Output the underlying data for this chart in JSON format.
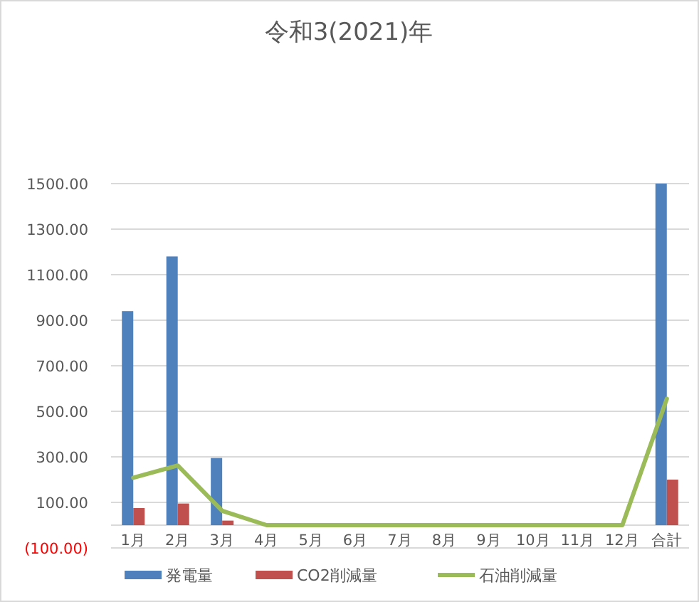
{
  "chart_data": {
    "type": "bar",
    "title": "令和3(2021)年",
    "categories": [
      "1月",
      "2月",
      "3月",
      "4月",
      "5月",
      "6月",
      "7月",
      "8月",
      "9月",
      "10月",
      "11月",
      "12月",
      "合計"
    ],
    "series": [
      {
        "name": "発電量",
        "color": "#4f81bd",
        "values": [
          940,
          1180,
          295,
          0,
          0,
          0,
          0,
          0,
          0,
          0,
          0,
          0,
          1500
        ]
      },
      {
        "name": "CO2削減量",
        "color": "#c0504d",
        "values": [
          75,
          95,
          20,
          0,
          0,
          0,
          0,
          0,
          0,
          0,
          0,
          0,
          200
        ]
      },
      {
        "name": "石油削減量",
        "type": "line",
        "color": "#9bbb59",
        "values": [
          208,
          262,
          63,
          0,
          0,
          0,
          0,
          0,
          0,
          0,
          0,
          0,
          555
        ]
      }
    ],
    "ylim": [
      -100,
      1500
    ],
    "yticks": [
      {
        "value": -100,
        "label": "(100.00)"
      },
      {
        "value": 100,
        "label": "100.00"
      },
      {
        "value": 300,
        "label": "300.00"
      },
      {
        "value": 500,
        "label": "500.00"
      },
      {
        "value": 700,
        "label": "700.00"
      },
      {
        "value": 900,
        "label": "900.00"
      },
      {
        "value": 1100,
        "label": "1100.00"
      },
      {
        "value": 1300,
        "label": "1300.00"
      },
      {
        "value": 1500,
        "label": "1500.00"
      }
    ],
    "grid": "y",
    "legend": "bottom"
  }
}
